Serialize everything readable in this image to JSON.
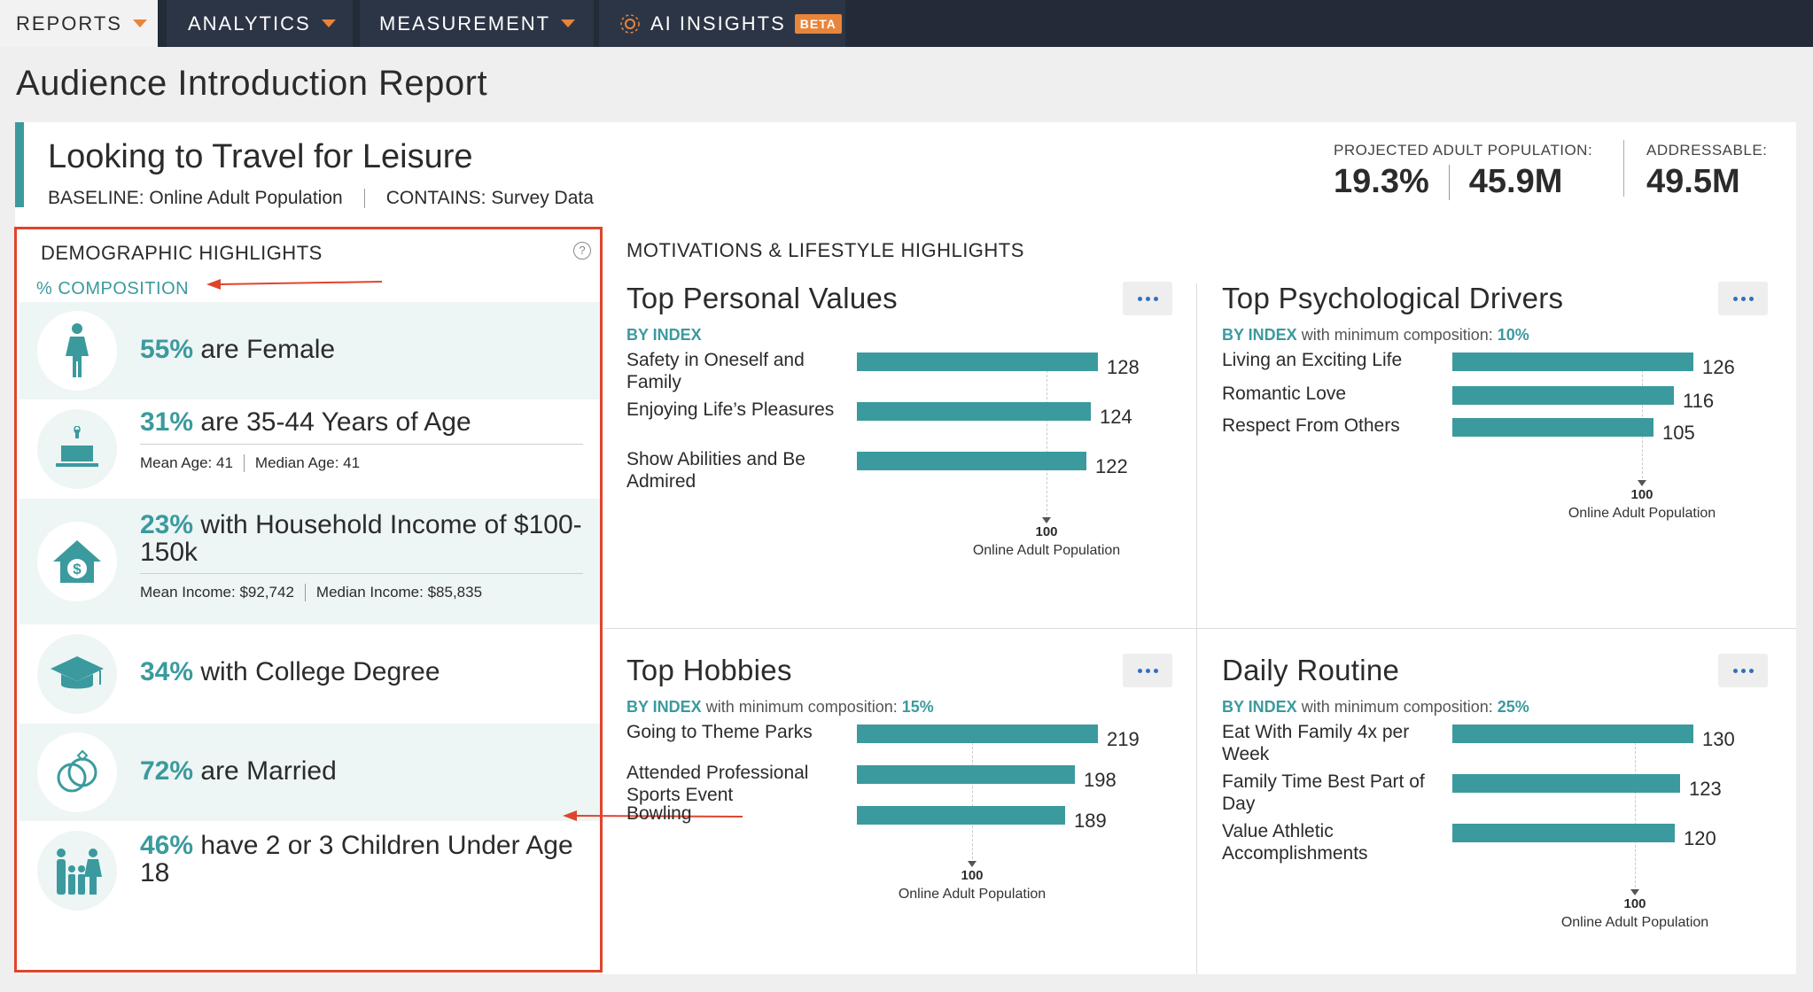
{
  "nav": {
    "reports": "REPORTS",
    "analytics": "ANALYTICS",
    "measurement": "MEASUREMENT",
    "ai_insights": "AI INSIGHTS",
    "beta": "BETA"
  },
  "page_title": "Audience Introduction Report",
  "audience": {
    "title": "Looking to Travel for Leisure",
    "baseline": "BASELINE: Online Adult Population",
    "contains": "CONTAINS: Survey Data",
    "projected_label": "PROJECTED ADULT POPULATION:",
    "projected_pct": "19.3%",
    "projected_count": "45.9M",
    "addressable_label": "ADDRESSABLE:",
    "addressable_count": "49.5M"
  },
  "demographics": {
    "heading": "DEMOGRAPHIC HIGHLIGHTS",
    "help": "?",
    "composition_label": "% COMPOSITION",
    "rows": [
      {
        "icon": "female-icon",
        "pct": "55%",
        "text": " are Female"
      },
      {
        "icon": "birthday-cake-icon",
        "pct": "31%",
        "text": " are 35-44 Years of Age",
        "sub1": "Mean Age: 41",
        "sub2": "Median Age: 41"
      },
      {
        "icon": "house-dollar-icon",
        "pct": "23%",
        "text": " with Household Income of $100-150k",
        "sub1": "Mean Income: $92,742",
        "sub2": "Median Income: $85,835"
      },
      {
        "icon": "graduation-cap-icon",
        "pct": "34%",
        "text": " with College Degree"
      },
      {
        "icon": "wedding-rings-icon",
        "pct": "72%",
        "text": " are Married"
      },
      {
        "icon": "family-icon",
        "pct": "46%",
        "text": " have 2 or 3 Children Under Age 18"
      }
    ]
  },
  "motivations": {
    "heading": "MOTIVATIONS & LIFESTYLE HIGHLIGHTS",
    "baseline_value": "100",
    "baseline_label": "Online Adult Population",
    "by_index": "BY INDEX",
    "min_comp_text": " with minimum composition: ",
    "panels": [
      {
        "title": "Top Personal Values",
        "min": "",
        "items": [
          {
            "label": "Safety in Oneself and Family",
            "value": 128
          },
          {
            "label": "Enjoying Life’s Pleasures",
            "value": 124
          },
          {
            "label": "Show Abilities and Be Admired",
            "value": 122
          }
        ]
      },
      {
        "title": "Top Psychological Drivers",
        "min": "10%",
        "items": [
          {
            "label": "Living an Exciting Life",
            "value": 126
          },
          {
            "label": "Romantic Love",
            "value": 116
          },
          {
            "label": "Respect From Others",
            "value": 105
          }
        ]
      },
      {
        "title": "Top Hobbies",
        "min": "15%",
        "items": [
          {
            "label": "Going to Theme Parks",
            "value": 219
          },
          {
            "label": "Attended Professional Sports Event",
            "value": 198
          },
          {
            "label": "Bowling",
            "value": 189
          }
        ]
      },
      {
        "title": "Daily Routine",
        "min": "25%",
        "items": [
          {
            "label": "Eat With Family 4x per Week",
            "value": 130
          },
          {
            "label": "Family Time Best Part of Day",
            "value": 123
          },
          {
            "label": "Value Athletic Accomplishments",
            "value": 120
          }
        ]
      }
    ]
  },
  "colors": {
    "accent": "#3b9a9e",
    "highlight_border": "#e0442c",
    "nav_bg": "#232b38",
    "caret": "#e8853a"
  }
}
